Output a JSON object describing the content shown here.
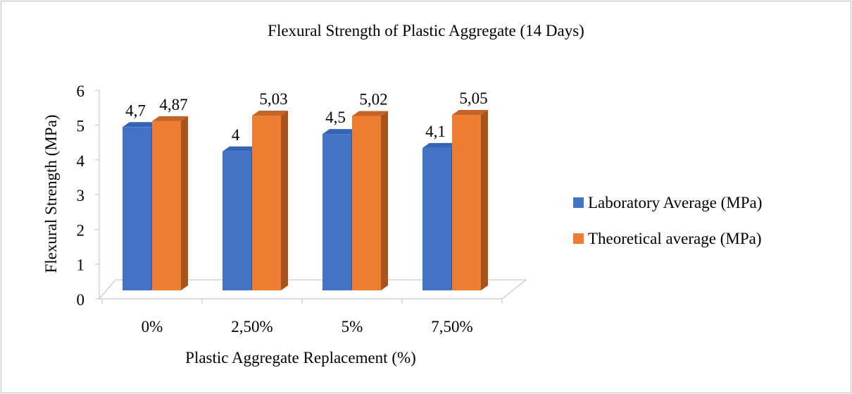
{
  "chart_data": {
    "type": "bar",
    "title": "Flexural Strength of Plastic Aggregate (14 Days)",
    "xlabel": "Plastic Aggregate Replacement (%)",
    "ylabel": "Flexural Strength (MPa)",
    "categories": [
      "0%",
      "2,50%",
      "5%",
      "7,50%"
    ],
    "ylim": [
      0,
      6
    ],
    "yticks": [
      "0",
      "1",
      "2",
      "3",
      "4",
      "5",
      "6"
    ],
    "series": [
      {
        "name": "Laboratory Average (MPa)",
        "values": [
          4.7,
          4,
          4.5,
          4.1
        ],
        "labels": [
          "4,7",
          "4",
          "4,5",
          "4,1"
        ],
        "color": "#4472c4",
        "side_color": "#2f528f",
        "top_color": "#3563b5"
      },
      {
        "name": "Theoretical average (MPa)",
        "values": [
          4.87,
          5.03,
          5.02,
          5.05
        ],
        "labels": [
          "4,87",
          "5,03",
          "5,02",
          "5,05"
        ],
        "color": "#ed7d31",
        "side_color": "#a9531c",
        "top_color": "#c5642a"
      }
    ],
    "legend_position": "right",
    "grid": false,
    "style": "3d-clustered-column"
  }
}
